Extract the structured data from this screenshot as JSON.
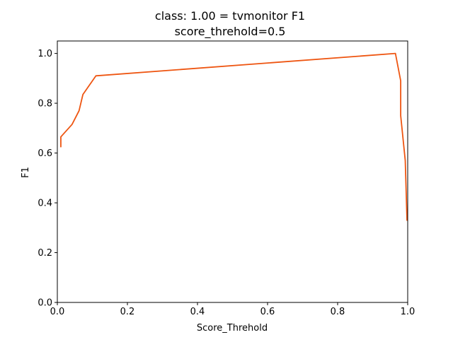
{
  "chart_data": {
    "type": "line",
    "title": "class: 1.00 = tvmonitor F1",
    "subtitle": "score_threhold=0.5",
    "xlabel": "Score_Threhold",
    "ylabel": "F1",
    "xlim": [
      0,
      1
    ],
    "ylim": [
      0,
      1.05
    ],
    "x_ticks": [
      0.0,
      0.2,
      0.4,
      0.6,
      0.8,
      1.0
    ],
    "x_tick_labels": [
      "0.0",
      "0.2",
      "0.4",
      "0.6",
      "0.8",
      "1.0"
    ],
    "y_ticks": [
      0.0,
      0.2,
      0.4,
      0.6,
      0.8,
      1.0
    ],
    "y_tick_labels": [
      "0.0",
      "0.2",
      "0.4",
      "0.6",
      "0.8",
      "1.0"
    ],
    "grid": false,
    "series": [
      {
        "color": "#ee5511",
        "x": [
          0.01,
          0.01,
          0.042,
          0.062,
          0.073,
          0.11,
          0.965,
          0.98,
          0.98,
          0.993,
          0.998
        ],
        "y": [
          0.625,
          0.665,
          0.715,
          0.77,
          0.835,
          0.91,
          1.0,
          0.89,
          0.75,
          0.57,
          0.33
        ]
      }
    ]
  }
}
